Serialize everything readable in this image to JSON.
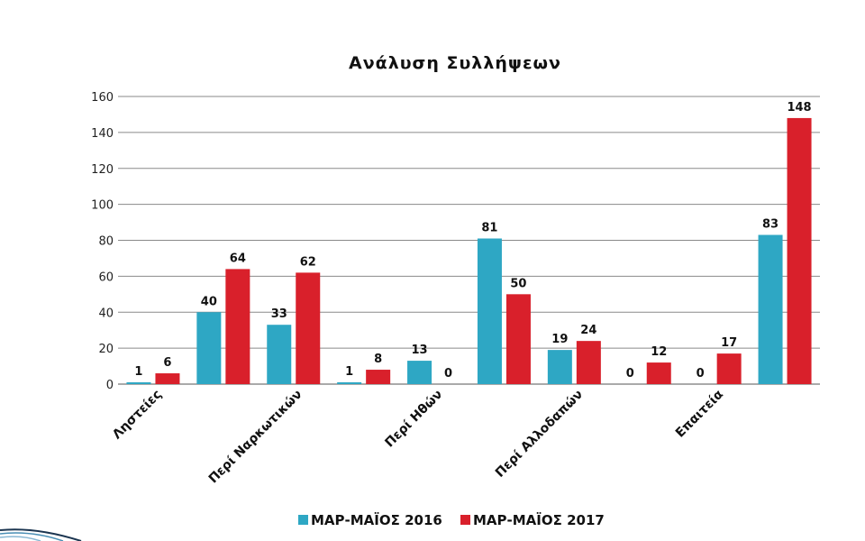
{
  "chart_data": {
    "type": "bar",
    "title": "Ανάλυση Συλλήψεων",
    "categories": [
      "Ληστείες",
      "",
      "Περί Ναρκωτικών",
      "",
      "Περί Ηθών",
      "",
      "Περί Αλλοδαπών",
      "",
      "Επαιτεία",
      ""
    ],
    "series": [
      {
        "name": "ΜΑΡ-ΜΑΪΟΣ 2016",
        "values": [
          1,
          40,
          33,
          1,
          13,
          81,
          19,
          0,
          0,
          83
        ],
        "color": "#2ea7c4"
      },
      {
        "name": "ΜΑΡ-ΜΑΪΟΣ 2017",
        "values": [
          6,
          64,
          62,
          8,
          0,
          50,
          24,
          12,
          17,
          148
        ],
        "color": "#d9202b"
      }
    ],
    "ylim": [
      0,
      160
    ],
    "yticks": [
      0,
      20,
      40,
      60,
      80,
      100,
      120,
      140,
      160
    ],
    "grid": true,
    "legend_position": "bottom"
  }
}
